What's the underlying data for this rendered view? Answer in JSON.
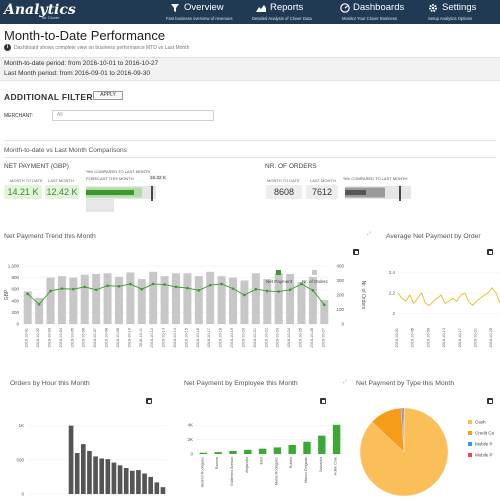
{
  "header": {
    "logo": "Analytics",
    "logo_sub": "for Clover",
    "nav": [
      {
        "label": "Overview",
        "sub": "Fast business overview of revenues",
        "icon": "filter-icon"
      },
      {
        "label": "Reports",
        "sub": "Detailed Analysis of Clover Data",
        "icon": "area-chart-icon"
      },
      {
        "label": "Dashboards",
        "sub": "Monitor Your Clover Business",
        "icon": "dashboard-icon"
      },
      {
        "label": "Settings",
        "sub": "Setup Analytics Options",
        "icon": "gear-icon"
      }
    ]
  },
  "page": {
    "title": "Month-to-Date Performance",
    "description": "Dashboard shows complete view on business performance MTD vs Last Month",
    "period_mtd": "Month-to-date period: from 2016-10-01 to 2016-10-27",
    "period_last": "Last Month period: from 2016-09-01 to 2016-09-30"
  },
  "filters": {
    "title": "ADDITIONAL FILTERS",
    "apply_label": "APPLY",
    "merchant_label": "MERCHANT:",
    "merchant_value": "All"
  },
  "comparisons": {
    "section_title": "Month-to-date vs Last Month Comparisons",
    "net_payment": {
      "title": "NET PAYMENT (GBP)",
      "mtd_caption": "MONTH TO DATE",
      "mtd_value": "14.21 K",
      "last_caption": "LAST MONTH",
      "last_value": "12.42 K",
      "compare_caption": "%% COMPARED TO LAST MONTH",
      "forecast_caption": "FORECAST THIS MONTH",
      "forecast_value": "16.32 K",
      "colors": {
        "mtd": "#3a9a2e",
        "forecast": "#b2dca6",
        "track": "#e6e6e6"
      }
    },
    "orders": {
      "title": "NR. OF ORDERS",
      "mtd_caption": "MONTH TO DATE",
      "mtd_value": "8608",
      "last_caption": "LAST MONTH",
      "last_value": "7612",
      "compare_caption": "%% COMPARED TO LAST MONTH",
      "colors": {
        "mtd": "#555555",
        "forecast": "#9a9a9a",
        "track": "#e6e6e6"
      }
    }
  },
  "panels": {
    "trend": "Net Payment Trend this Month",
    "avg": "Average Net Payment by Order",
    "hour": "Orders by Hour this Month",
    "employee": "Net Payment by Employee this Month",
    "type": "Net Payment by Type this Month"
  },
  "chart_data": [
    {
      "id": "trend",
      "type": "bar",
      "title": "Net Payment Trend this Month",
      "ylabel": "GBP",
      "y2label": "Nr. of Orders",
      "ylim": [
        0,
        1000
      ],
      "y2lim": [
        0,
        400
      ],
      "yticks": [
        "0",
        "200",
        "400",
        "600",
        "800",
        "1,000"
      ],
      "y2ticks": [
        "0",
        "100",
        "200",
        "300",
        "400"
      ],
      "categories": [
        "2016-10-01",
        "2016-10-02",
        "2016-10-03",
        "2016-10-04",
        "2016-10-05",
        "2016-10-06",
        "2016-10-07",
        "2016-10-08",
        "2016-10-09",
        "2016-10-10",
        "2016-10-11",
        "2016-10-12",
        "2016-10-13",
        "2016-10-14",
        "2016-10-15",
        "2016-10-16",
        "2016-10-17",
        "2016-10-18",
        "2016-10-19",
        "2016-10-20",
        "2016-10-21",
        "2016-10-22",
        "2016-10-23",
        "2016-10-24",
        "2016-10-25",
        "2016-10-26",
        "2016-10-27"
      ],
      "series": [
        {
          "name": "Net Payment",
          "kind": "line",
          "axis": "left",
          "color": "#3a9a2e",
          "values": [
            520,
            340,
            570,
            610,
            600,
            640,
            590,
            660,
            650,
            690,
            600,
            690,
            680,
            640,
            620,
            580,
            670,
            690,
            610,
            500,
            600,
            570,
            560,
            590,
            690,
            580,
            330
          ]
        },
        {
          "name": "Nr. of Orders",
          "kind": "bar",
          "axis": "right",
          "color": "#c7c7c7",
          "values": [
            225,
            180,
            320,
            330,
            320,
            340,
            345,
            350,
            325,
            355,
            310,
            360,
            330,
            350,
            350,
            330,
            360,
            330,
            320,
            300,
            350,
            310,
            350,
            345,
            290,
            325,
            165
          ]
        }
      ],
      "legend": "top-right"
    },
    {
      "id": "avg",
      "type": "line",
      "title": "Average Net Payment by Order",
      "yticks": [
        "2",
        "2.2",
        "2.4"
      ],
      "ylim": [
        1.9,
        2.5
      ],
      "categories": [
        "2016-10-01",
        "2016-10-02",
        "2016-10-03",
        "2016-10-04",
        "2016-10-05",
        "2016-10-06",
        "2016-10-07",
        "2016-10-08",
        "2016-10-09",
        "2016-10-10",
        "2016-10-11",
        "2016-10-12",
        "2016-10-13",
        "2016-10-14",
        "2016-10-15",
        "2016-10-16",
        "2016-10-17",
        "2016-10-18",
        "2016-10-19",
        "2016-10-20",
        "2016-10-21",
        "2016-10-22",
        "2016-10-23",
        "2016-10-24",
        "2016-10-25",
        "2016-10-26",
        "2016-10-27"
      ],
      "series": [
        {
          "name": "",
          "color": "#f0c030",
          "values": [
            2.2,
            2.15,
            2.12,
            2.18,
            2.1,
            2.15,
            2.2,
            2.1,
            2.08,
            2.12,
            2.15,
            2.18,
            2.1,
            2.12,
            2.15,
            2.12,
            2.18,
            2.2,
            2.12,
            2.08,
            2.12,
            2.15,
            2.18,
            2.2,
            2.25,
            2.2,
            2.1
          ]
        }
      ]
    },
    {
      "id": "hour",
      "type": "bar",
      "title": "Orders by Hour this Month",
      "yticks": [
        "0",
        "500",
        "1K"
      ],
      "ylim": [
        0,
        1200
      ],
      "categories": [
        "8",
        "9",
        "10",
        "11",
        "12",
        "13",
        "14",
        "15",
        "16",
        "17",
        "18",
        "19",
        "20",
        "21",
        "22",
        "23"
      ],
      "series": [
        {
          "name": "",
          "color": "#555555",
          "values": [
            1000,
            600,
            730,
            630,
            550,
            520,
            510,
            460,
            420,
            380,
            340,
            350,
            300,
            250,
            170,
            100
          ]
        }
      ]
    },
    {
      "id": "employee",
      "type": "bar",
      "title": "Net Payment by Employee this Month",
      "yticks": [
        "0",
        "2K",
        "4K"
      ],
      "ylim": [
        0,
        5000
      ],
      "categories": [
        "Andres Rodriguez",
        "Ramon",
        "Guillermo Arenas",
        "Alejandro",
        "Eliot",
        "Marta Rodriguez",
        "Rubén",
        "Marco Delgado",
        "Salvador",
        "Hollie Cole"
      ],
      "series": [
        {
          "name": "",
          "color": "#3aaa35",
          "values": [
            180,
            260,
            420,
            580,
            740,
            920,
            1250,
            1700,
            2550,
            4050
          ]
        }
      ]
    },
    {
      "id": "type",
      "type": "pie",
      "title": "Net Payment by Type this Month",
      "series": [
        {
          "name": "Cash",
          "color": "#fbbf5a",
          "value": 87
        },
        {
          "name": "Credit Ca",
          "color": "#f59c1a",
          "value": 12
        },
        {
          "name": "Mobile P",
          "color": "#2e9be0",
          "value": 0.6
        },
        {
          "name": "Mobile P",
          "color": "#e64a4a",
          "value": 0.4
        }
      ],
      "legend": "right"
    }
  ]
}
